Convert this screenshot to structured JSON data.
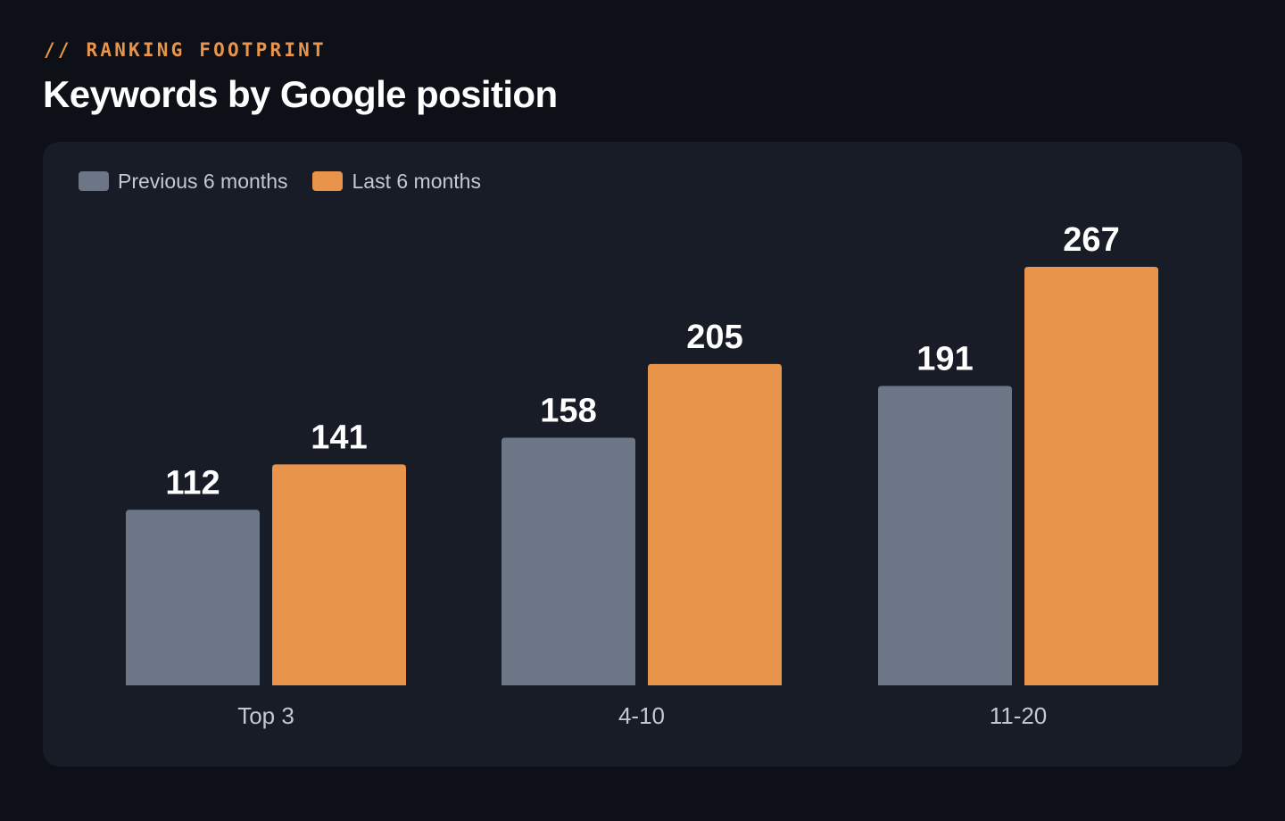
{
  "header": {
    "eyebrow": "// RANKING FOOTPRINT",
    "title": "Keywords by Google position"
  },
  "colors": {
    "background": "#0d1017",
    "card": "#171c27",
    "accent": "#e8944b"
  },
  "chart_data": {
    "type": "bar",
    "title": "Keywords by Google position",
    "subtitle": "// RANKING FOOTPRINT",
    "xlabel": "",
    "ylabel": "",
    "categories": [
      "Top 3",
      "4-10",
      "11-20"
    ],
    "series": [
      {
        "name": "Previous 6 months",
        "color": "#6d7686",
        "values": [
          112,
          158,
          191
        ]
      },
      {
        "name": "Last 6 months",
        "color": "#e8944b",
        "values": [
          141,
          205,
          267
        ]
      }
    ],
    "ylim": [
      0,
      267
    ],
    "grid": false,
    "legend": "top-left",
    "data_labels": true
  }
}
